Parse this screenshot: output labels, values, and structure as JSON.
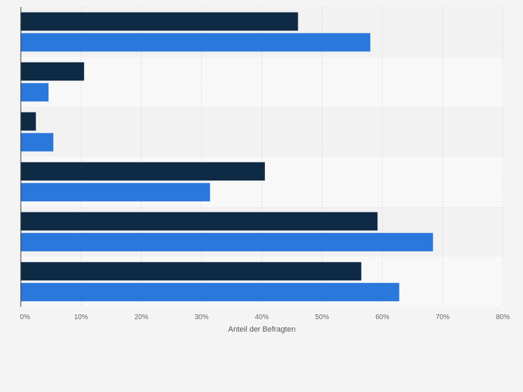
{
  "chart_data": {
    "type": "bar",
    "orientation": "horizontal",
    "categories": [
      "",
      "",
      "",
      "",
      "",
      ""
    ],
    "series": [
      {
        "values": [
          46,
          10.5,
          2.5,
          40.5,
          59.2,
          56.5
        ],
        "color": "#0f2a44"
      },
      {
        "values": [
          58,
          4.6,
          5.4,
          31.4,
          68.4,
          62.8
        ],
        "color": "#2a78dc"
      }
    ],
    "xlabel": "Anteil der Befragten",
    "xlim": [
      0,
      80
    ],
    "xticks": [
      0,
      10,
      20,
      30,
      40,
      50,
      60,
      70,
      80
    ],
    "xtick_labels": [
      "0%",
      "10%",
      "20%",
      "30%",
      "40%",
      "50%",
      "60%",
      "70%",
      "80%"
    ],
    "grid": true
  }
}
